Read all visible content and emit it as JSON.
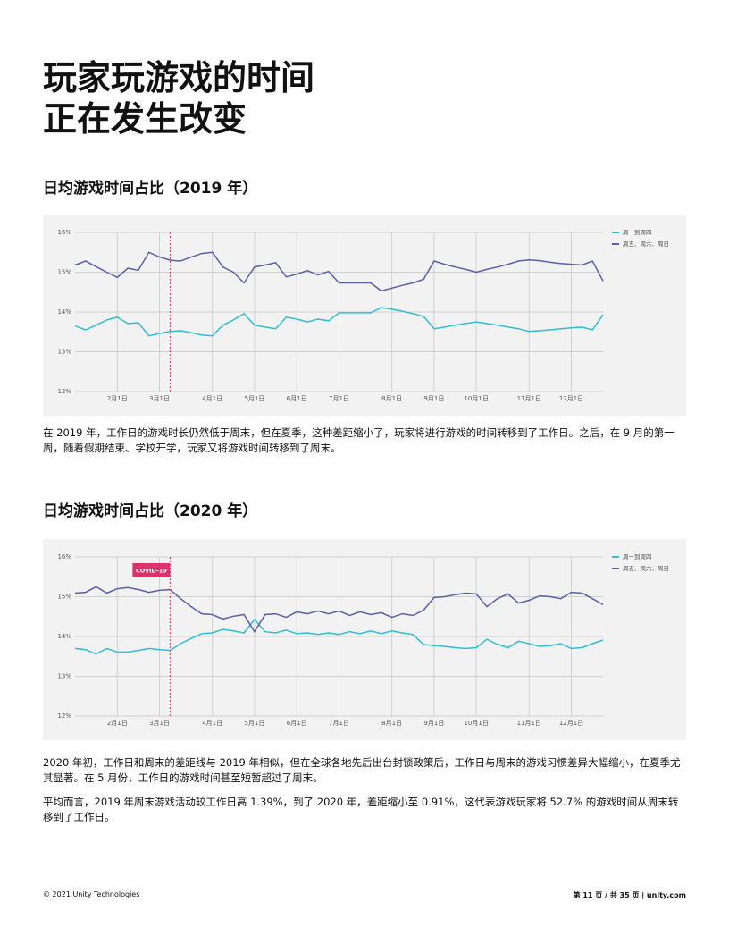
{
  "title": [
    "玩家玩游戏的时间",
    "正在发生改变"
  ],
  "chart_data": [
    {
      "type": "line",
      "title": "日均游戏时间占比（2019 年）",
      "categories": [
        null,
        null,
        null,
        null,
        "2月1日",
        null,
        null,
        null,
        "3月1日",
        null,
        null,
        null,
        null,
        "4月1日",
        null,
        null,
        null,
        "5月1日",
        null,
        null,
        null,
        "6月1日",
        null,
        null,
        null,
        "7月1日",
        null,
        null,
        null,
        null,
        "8月1日",
        null,
        null,
        null,
        "9月1日",
        null,
        null,
        null,
        "10月1日",
        null,
        null,
        null,
        null,
        "11月1日",
        null,
        null,
        null,
        "12月1日",
        null,
        null,
        null
      ],
      "series": [
        {
          "name": "周一到周四",
          "color": "#2ebfd3",
          "values": [
            13.65,
            13.55,
            13.67,
            13.8,
            13.87,
            13.71,
            13.73,
            13.4,
            13.46,
            13.51,
            13.53,
            13.48,
            13.42,
            13.4,
            13.67,
            13.8,
            13.96,
            13.67,
            13.62,
            13.58,
            13.87,
            13.82,
            13.75,
            13.82,
            13.78,
            13.98,
            13.98,
            13.98,
            13.98,
            14.11,
            14.07,
            14.02,
            13.96,
            13.89,
            13.58,
            13.62,
            13.67,
            13.71,
            13.75,
            13.71,
            13.67,
            13.62,
            13.58,
            13.51,
            13.53,
            13.55,
            13.58,
            13.6,
            13.62,
            13.55,
            13.93
          ]
        },
        {
          "name": "周五、周六、周日",
          "color": "#5c5ea8",
          "values": [
            15.18,
            15.28,
            15.14,
            15.0,
            14.87,
            15.1,
            15.05,
            15.5,
            15.38,
            15.3,
            15.28,
            15.38,
            15.47,
            15.5,
            15.13,
            15.0,
            14.73,
            15.13,
            15.18,
            15.24,
            14.88,
            14.95,
            15.04,
            14.93,
            15.02,
            14.73,
            14.73,
            14.73,
            14.73,
            14.53,
            14.6,
            14.67,
            14.73,
            14.82,
            15.28,
            15.2,
            15.13,
            15.07,
            15.0,
            15.07,
            15.13,
            15.2,
            15.28,
            15.31,
            15.29,
            15.25,
            15.22,
            15.2,
            15.18,
            15.28,
            14.78
          ]
        }
      ],
      "ylim": [
        12,
        16
      ],
      "yticks": [
        {
          "value": 12,
          "label": "12%"
        },
        {
          "value": 13,
          "label": "13%"
        },
        {
          "value": 14,
          "label": "14%"
        },
        {
          "value": 15,
          "label": "15%"
        },
        {
          "value": 16,
          "label": "16%"
        }
      ],
      "grid": true,
      "legend": "top-right",
      "marker_index": 9
    },
    {
      "type": "line",
      "title": "日均游戏时间占比（2020 年）",
      "categories": [
        null,
        null,
        null,
        null,
        "2月1日",
        null,
        null,
        null,
        "3月1日",
        null,
        null,
        null,
        null,
        "4月1日",
        null,
        null,
        null,
        "5月1日",
        null,
        null,
        null,
        "6月1日",
        null,
        null,
        null,
        "7月1日",
        null,
        null,
        null,
        null,
        "8月1日",
        null,
        null,
        null,
        "9月1日",
        null,
        null,
        null,
        "10月1日",
        null,
        null,
        null,
        null,
        "11月1日",
        null,
        null,
        null,
        "12月1日",
        null,
        null,
        null
      ],
      "series": [
        {
          "name": "周一到周四",
          "color": "#2ebfd3",
          "values": [
            13.7,
            13.67,
            13.56,
            13.7,
            13.61,
            13.61,
            13.65,
            13.7,
            13.67,
            13.65,
            13.82,
            13.95,
            14.07,
            14.09,
            14.18,
            14.14,
            14.09,
            14.43,
            14.12,
            14.09,
            14.16,
            14.07,
            14.09,
            14.05,
            14.09,
            14.05,
            14.12,
            14.07,
            14.14,
            14.07,
            14.14,
            14.09,
            14.05,
            13.8,
            13.77,
            13.75,
            13.72,
            13.7,
            13.72,
            13.93,
            13.8,
            13.72,
            13.88,
            13.82,
            13.75,
            13.77,
            13.82,
            13.7,
            13.72,
            13.82,
            13.91
          ]
        },
        {
          "name": "周五、周六、周日",
          "color": "#5c5ea8",
          "values": [
            15.09,
            15.11,
            15.25,
            15.09,
            15.2,
            15.23,
            15.18,
            15.11,
            15.16,
            15.18,
            14.95,
            14.75,
            14.57,
            14.55,
            14.44,
            14.51,
            14.55,
            14.12,
            14.55,
            14.57,
            14.48,
            14.62,
            14.57,
            14.64,
            14.57,
            14.64,
            14.53,
            14.62,
            14.55,
            14.6,
            14.48,
            14.57,
            14.53,
            14.66,
            14.98,
            15.0,
            15.05,
            15.09,
            15.07,
            14.75,
            14.95,
            15.07,
            14.84,
            14.91,
            15.02,
            15.0,
            14.95,
            15.11,
            15.09,
            14.95,
            14.8
          ]
        }
      ],
      "ylim": [
        12,
        16
      ],
      "yticks": [
        {
          "value": 12,
          "label": "12%"
        },
        {
          "value": 13,
          "label": "13%"
        },
        {
          "value": 14,
          "label": "14%"
        },
        {
          "value": 15,
          "label": "15%"
        },
        {
          "value": 16,
          "label": "16%"
        }
      ],
      "grid": true,
      "legend": "top-right",
      "marker_index": 9,
      "annotation": "COVID-19"
    }
  ],
  "paragraphs": [
    "在 2019 年，工作日的游戏时长仍然低于周末，但在夏季，这种差距缩小了，玩家将进行游戏的时间转移到了工作日。之后，在 9 月的第一周，随着假期结束、学校开学，玩家又将游戏时间转移到了周末。",
    "2020 年初，工作日和周末的差距线与 2019 年相似，但在全球各地先后出台封锁政策后，工作日与周末的游戏习惯差异大幅缩小，在夏季尤其显著。在 5 月份，工作日的游戏时间甚至短暂超过了周末。",
    "平均而言，2019 年周末游戏活动较工作日高 1.39%，到了 2020 年，差距缩小至 0.91%，这代表游戏玩家将 52.7% 的游戏时间从周末转移到了工作日。"
  ],
  "footer": {
    "left": "© 2021 Unity Technologies",
    "right": "第 11 页 / 共 35 页 | unity.com"
  }
}
